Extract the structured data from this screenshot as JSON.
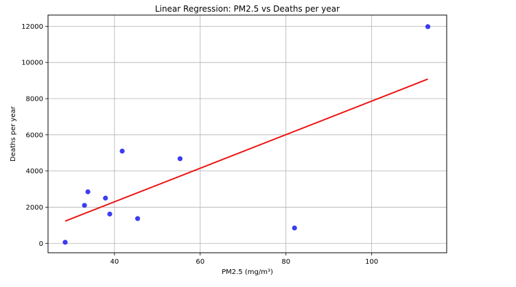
{
  "chart_data": {
    "type": "scatter",
    "title": "Linear Regression: PM2.5 vs Deaths per year",
    "xlabel": "PM2.5 (mg/m³)",
    "ylabel": "Deaths per year",
    "xlim": [
      24.5,
      117.5
    ],
    "ylim": [
      -520,
      12620
    ],
    "xticks": [
      40,
      60,
      80,
      100
    ],
    "yticks": [
      0,
      2000,
      4000,
      6000,
      8000,
      10000,
      12000
    ],
    "grid": true,
    "points": [
      {
        "x": 28.5,
        "y": 60
      },
      {
        "x": 33.0,
        "y": 2100
      },
      {
        "x": 33.8,
        "y": 2850
      },
      {
        "x": 37.9,
        "y": 2500
      },
      {
        "x": 38.9,
        "y": 1620
      },
      {
        "x": 41.8,
        "y": 5100
      },
      {
        "x": 45.4,
        "y": 1370
      },
      {
        "x": 55.3,
        "y": 4680
      },
      {
        "x": 82.0,
        "y": 850
      },
      {
        "x": 113.1,
        "y": 11980
      }
    ],
    "regression_line": {
      "x": [
        28.5,
        113.1
      ],
      "y": [
        1230,
        9080
      ]
    },
    "colors": {
      "points": "#1a1aee",
      "line": "#ee1111",
      "grid": "#b0b0b0"
    }
  }
}
